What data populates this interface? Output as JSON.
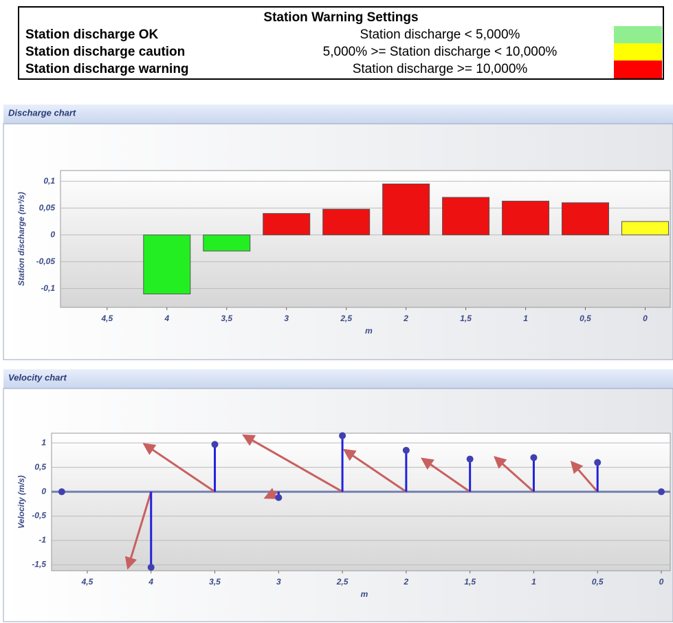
{
  "settings": {
    "title": "Station Warning Settings",
    "rows": [
      {
        "name": "Station discharge OK",
        "condition": "Station discharge < 5,000%",
        "color": "#90ee90"
      },
      {
        "name": "Station discharge caution",
        "condition": "5,000% >= Station discharge < 10,000%",
        "color": "#ffff00"
      },
      {
        "name": "Station discharge warning",
        "condition": "Station discharge >= 10,000%",
        "color": "#ff0000"
      }
    ]
  },
  "chart_data": [
    {
      "type": "bar",
      "panel_title": "Discharge chart",
      "y_label": "Station discharge (m³/s)",
      "x_label": "m",
      "x": [
        4.7,
        4,
        3.5,
        3,
        2.5,
        2,
        1.5,
        1,
        0.5,
        0
      ],
      "values": [
        0,
        -0.11,
        -0.03,
        0.04,
        0.048,
        0.095,
        0.07,
        0.063,
        0.06,
        0.025
      ],
      "colors": [
        "#888888",
        "#22ee22",
        "#22ee22",
        "#ee1111",
        "#ee1111",
        "#ee1111",
        "#ee1111",
        "#ee1111",
        "#ee1111",
        "#ffff22"
      ],
      "xlim": [
        4.89,
        -0.21
      ],
      "ylim": [
        -0.135,
        0.12
      ],
      "xticks": [
        {
          "value": 4.5,
          "label": "4,5"
        },
        4,
        {
          "value": 3.5,
          "label": "3,5"
        },
        3,
        {
          "value": 2.5,
          "label": "2,5"
        },
        2,
        {
          "value": 1.5,
          "label": "1,5"
        },
        1,
        {
          "value": 0.5,
          "label": "0,5"
        },
        0
      ],
      "yticks": [
        {
          "value": 0.1,
          "label": "0,1"
        },
        {
          "value": 0.05,
          "label": "0,05"
        },
        0,
        {
          "value": -0.05,
          "label": "-0,05"
        },
        {
          "value": -0.1,
          "label": "-0,1"
        }
      ],
      "grid": true
    },
    {
      "type": "stem",
      "panel_title": "Velocity chart",
      "y_label": "Velocity (m/s)",
      "x_label": "m",
      "x": [
        4.7,
        4,
        3.5,
        3,
        2.5,
        2,
        1.5,
        1,
        0.5,
        0
      ],
      "values": [
        0,
        -1.55,
        0.97,
        -0.12,
        1.15,
        0.85,
        0.67,
        0.7,
        0.6,
        0
      ],
      "arrow_dx": [
        null,
        0.18,
        0.55,
        0.1,
        0.77,
        0.48,
        0.37,
        0.3,
        0.2,
        null
      ],
      "color": "#2222dd",
      "arrow_color": "#c86060",
      "xlim": [
        4.78,
        -0.07
      ],
      "ylim": [
        -1.62,
        1.2
      ],
      "xticks": [
        {
          "value": 4.5,
          "label": "4,5"
        },
        4,
        {
          "value": 3.5,
          "label": "3,5"
        },
        3,
        {
          "value": 2.5,
          "label": "2,5"
        },
        2,
        {
          "value": 1.5,
          "label": "1,5"
        },
        1,
        {
          "value": 0.5,
          "label": "0,5"
        },
        0
      ],
      "yticks": [
        1,
        {
          "value": 0.5,
          "label": "0,5"
        },
        0,
        {
          "value": -0.5,
          "label": "-0,5"
        },
        -1,
        {
          "value": -1.5,
          "label": "-1,5"
        }
      ],
      "grid": true
    }
  ]
}
